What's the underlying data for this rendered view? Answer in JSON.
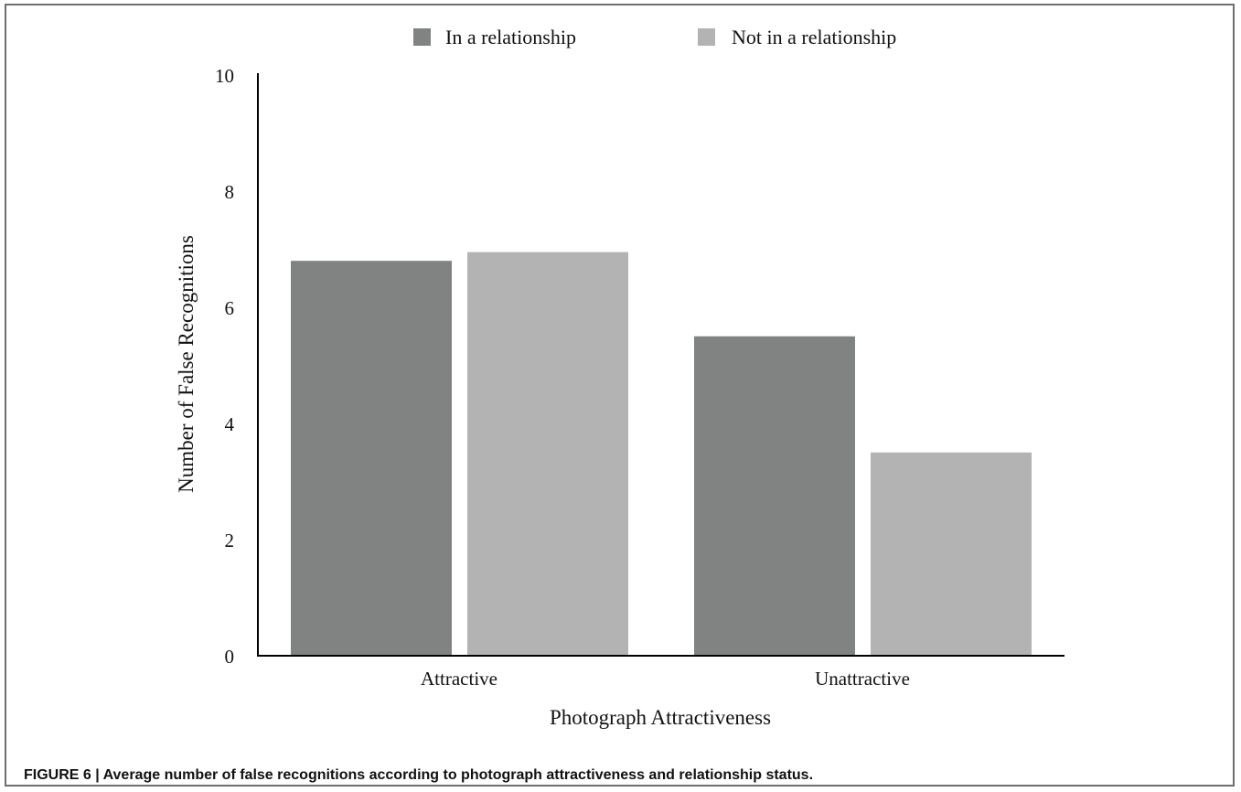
{
  "figure": {
    "caption": "FIGURE 6 | Average number of false recognitions according to photograph attractiveness and relationship status."
  },
  "chart_data": {
    "type": "bar",
    "title": "",
    "xlabel": "Photograph Attractiveness",
    "ylabel": "Number of False Recognitions",
    "categories": [
      "Attractive",
      "Unattractive"
    ],
    "series": [
      {
        "name": "In a relationship",
        "values": [
          6.8,
          5.5
        ],
        "color": "#808382"
      },
      {
        "name": "Not in a relationship",
        "values": [
          6.95,
          3.5
        ],
        "color": "#b3b3b3"
      }
    ],
    "ylim": [
      0,
      10
    ],
    "yticks": [
      "0",
      "2",
      "4",
      "6",
      "8",
      "10"
    ],
    "grid": false,
    "legend_position": "top-center"
  }
}
